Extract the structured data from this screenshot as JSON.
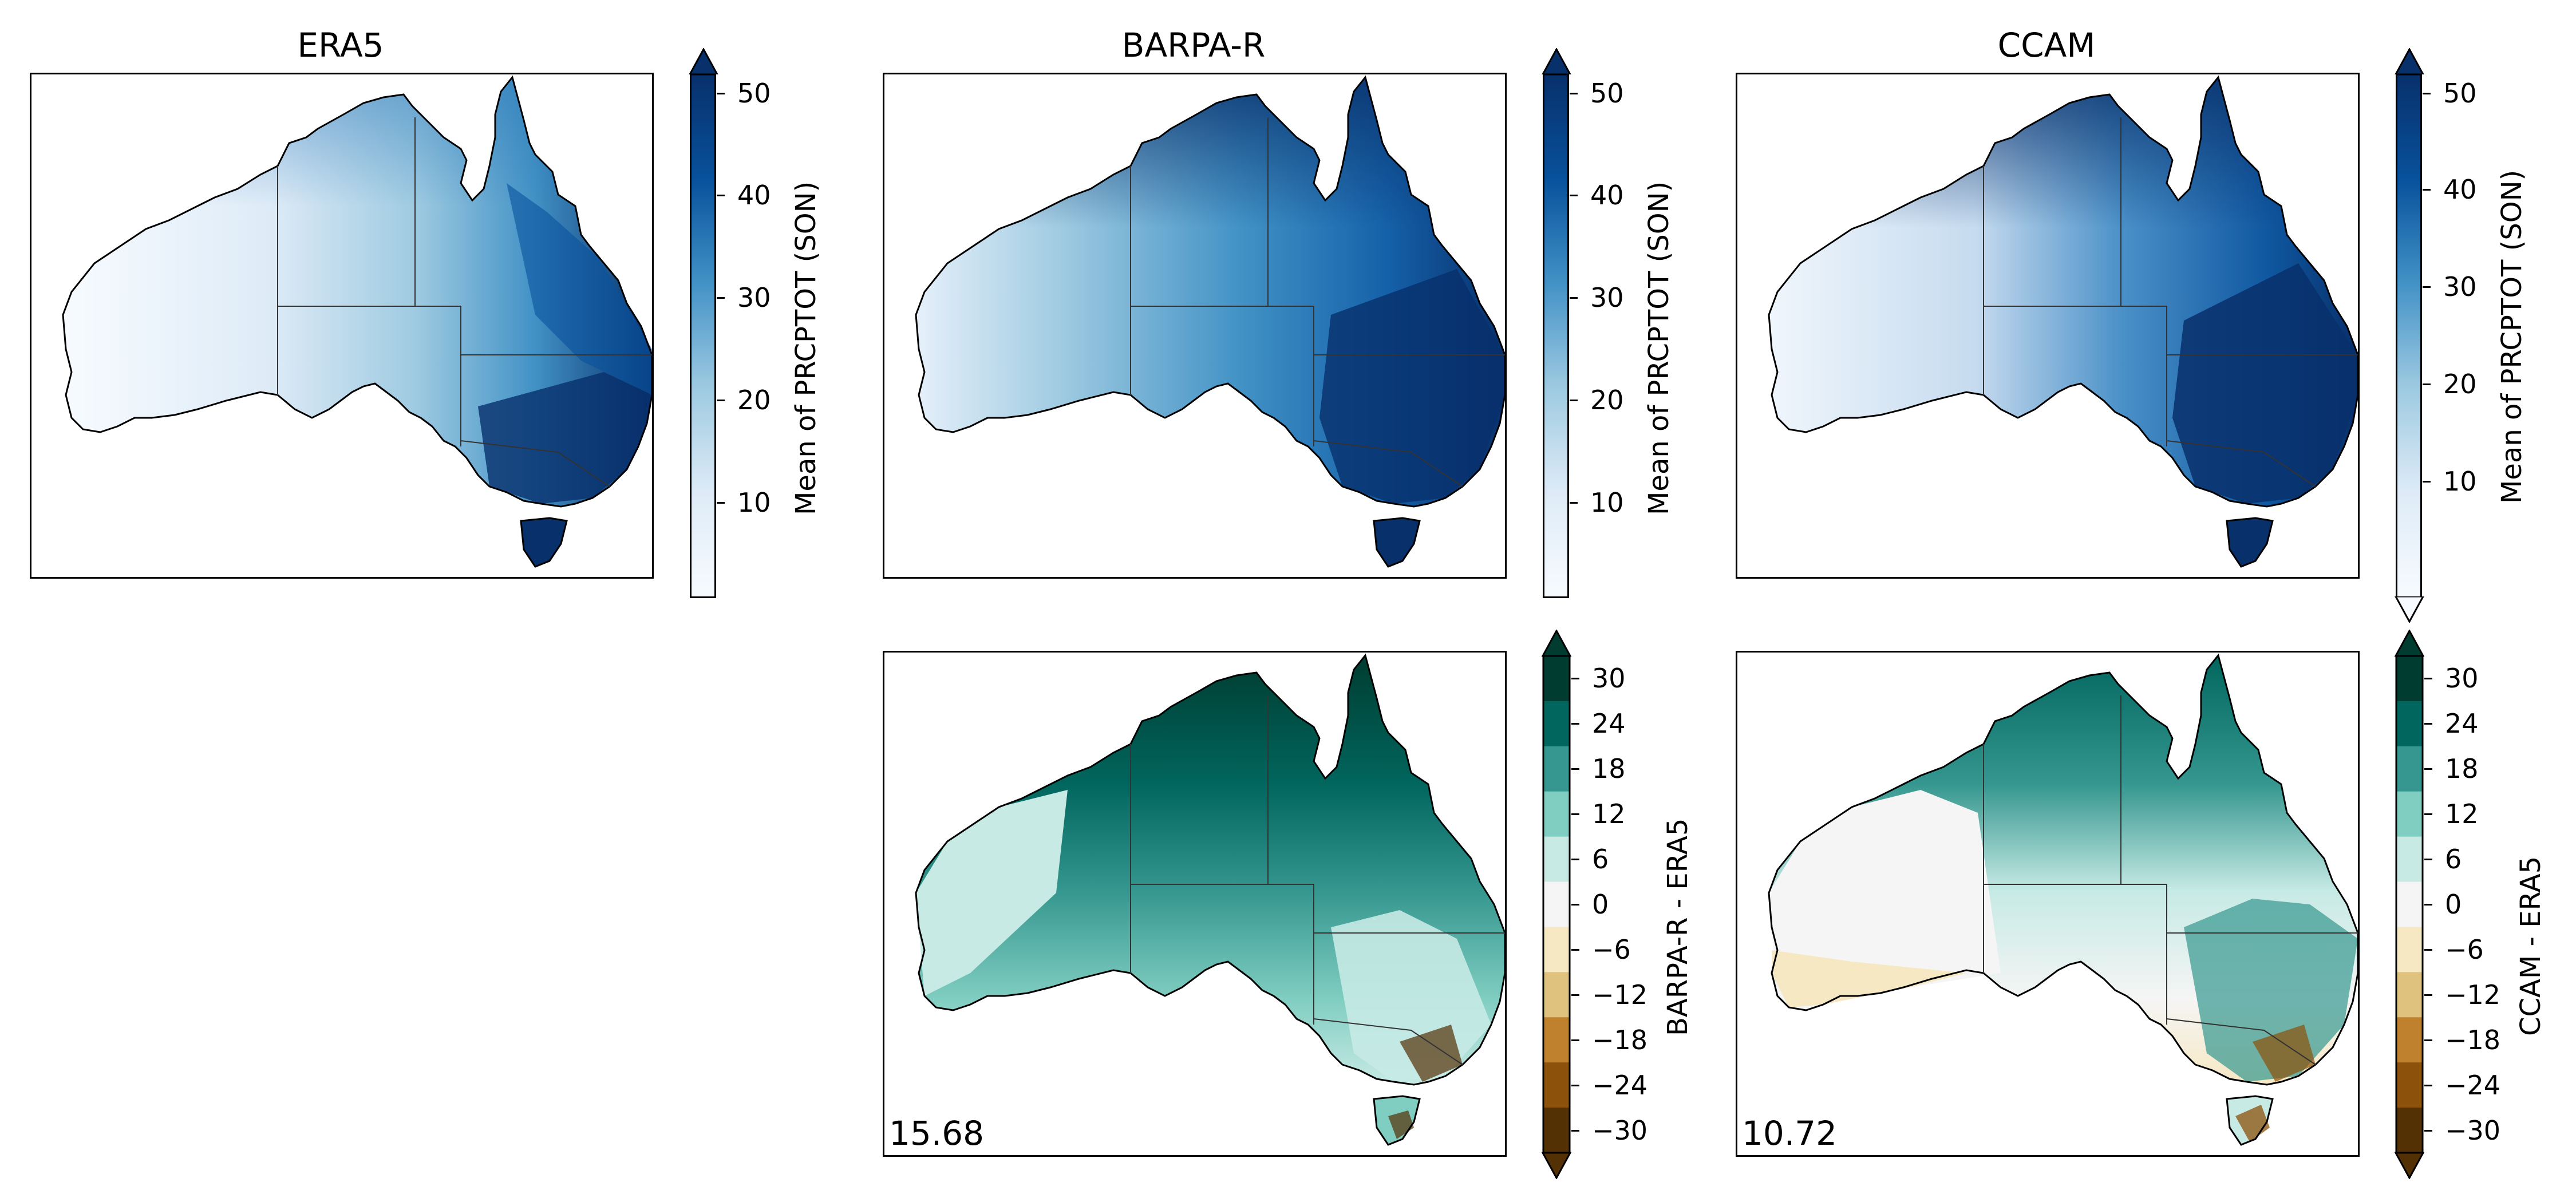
{
  "panels": {
    "era5": {
      "title": "ERA5"
    },
    "barpa": {
      "title": "BARPA-R"
    },
    "ccam": {
      "title": "CCAM"
    },
    "barpa_diff": {
      "score": "15.68"
    },
    "ccam_diff": {
      "score": "10.72"
    }
  },
  "colorbars": {
    "mean": {
      "label": "Mean of PRCPTOT (SON)",
      "ticks": [
        "50",
        "40",
        "30",
        "20",
        "10"
      ],
      "range": [
        1,
        52
      ],
      "colors": [
        "#f7fbff",
        "#deebf7",
        "#c6dbef",
        "#9ecae1",
        "#6baed6",
        "#4292c6",
        "#2171b5",
        "#08519c",
        "#08306b"
      ]
    },
    "barpa_diff": {
      "label": "BARPA-R - ERA5",
      "ticks": [
        "30",
        "24",
        "18",
        "12",
        "6",
        "0",
        "−6",
        "−12",
        "−18",
        "−24",
        "−30"
      ]
    },
    "ccam_diff": {
      "label": "CCAM - ERA5",
      "ticks": [
        "30",
        "24",
        "18",
        "12",
        "6",
        "0",
        "−6",
        "−12",
        "−18",
        "−24",
        "−30"
      ]
    },
    "diff_colors": [
      "#003c30",
      "#01665e",
      "#35978f",
      "#80cdc1",
      "#c7eae5",
      "#f5f5f5",
      "#f6e8c3",
      "#dfc27d",
      "#bf812d",
      "#8c510a",
      "#543005"
    ]
  },
  "chart_data": {
    "type": "heatmap",
    "region": "Australia",
    "season": "SON",
    "panels": [
      {
        "title": "ERA5",
        "colorbar_label": "Mean of PRCPTOT (SON)",
        "colorbar_range": [
          1,
          52
        ],
        "colorbar_ticks": [
          10,
          20,
          30,
          40,
          50
        ]
      },
      {
        "title": "BARPA-R",
        "colorbar_label": "Mean of PRCPTOT (SON)",
        "colorbar_range": [
          1,
          52
        ],
        "colorbar_ticks": [
          10,
          20,
          30,
          40,
          50
        ]
      },
      {
        "title": "CCAM",
        "colorbar_label": "Mean of PRCPTOT (SON)",
        "colorbar_range": [
          1,
          52
        ],
        "colorbar_ticks": [
          10,
          20,
          30,
          40,
          50
        ]
      },
      {
        "title": "",
        "colorbar_label": "BARPA-R - ERA5",
        "score": 15.68,
        "colorbar_ticks": [
          -30,
          -24,
          -18,
          -12,
          -6,
          0,
          6,
          12,
          18,
          24,
          30
        ]
      },
      {
        "title": "",
        "colorbar_label": "CCAM - ERA5",
        "score": 10.72,
        "colorbar_ticks": [
          -30,
          -24,
          -18,
          -12,
          -6,
          0,
          6,
          12,
          18,
          24,
          30
        ]
      }
    ]
  }
}
